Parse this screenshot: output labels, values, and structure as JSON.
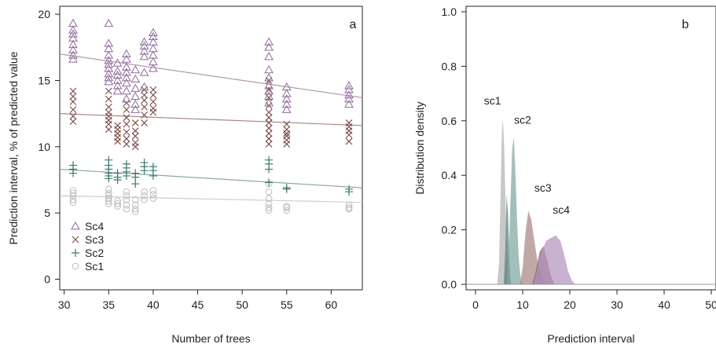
{
  "chart_data": [
    {
      "panel_label": "a",
      "type": "scatter",
      "xlabel": "Number of trees",
      "ylabel": "Prediction interval, % of predicted value",
      "xlim": [
        29.5,
        63.5
      ],
      "ylim": [
        -0.8,
        20.6
      ],
      "xticks": [
        30,
        35,
        40,
        45,
        50,
        55,
        60
      ],
      "yticks": [
        0,
        5,
        10,
        15,
        20
      ],
      "legend_position": "bottom-left",
      "series": [
        {
          "name": "Sc4",
          "marker": "triangle",
          "color": "#8e6a9c",
          "x": [
            31,
            31,
            31,
            31,
            31,
            31,
            31,
            31,
            35,
            35,
            35,
            35,
            35,
            35,
            35,
            35,
            35,
            35,
            36,
            36,
            36,
            36,
            36,
            36,
            37,
            37,
            37,
            37,
            37,
            37,
            37,
            37,
            38,
            38,
            38,
            38,
            38,
            38,
            39,
            39,
            39,
            39,
            39,
            39,
            40,
            40,
            40,
            40,
            40,
            40,
            40,
            53,
            53,
            53,
            53,
            53,
            53,
            53,
            53,
            53,
            55,
            55,
            55,
            55,
            55,
            62,
            62,
            62,
            62,
            62
          ],
          "y": [
            19.3,
            18.8,
            18.2,
            17.7,
            17.3,
            16.9,
            16.6,
            18.5,
            19.3,
            17.8,
            17.4,
            16.9,
            16.5,
            16.2,
            15.9,
            15.5,
            15.2,
            14.9,
            16.3,
            15.7,
            15.4,
            15.0,
            14.6,
            14.2,
            17.0,
            16.6,
            16.0,
            15.6,
            15.2,
            14.8,
            14.2,
            13.6,
            15.8,
            15.1,
            14.4,
            13.8,
            13.2,
            12.8,
            17.9,
            17.6,
            17.2,
            16.8,
            15.6,
            14.5,
            18.6,
            18.3,
            17.9,
            17.4,
            16.9,
            16.4,
            15.9,
            17.9,
            17.5,
            16.8,
            15.8,
            15.2,
            14.6,
            14.2,
            13.8,
            13.3,
            14.5,
            14.0,
            13.6,
            13.2,
            12.8,
            14.6,
            14.3,
            13.9,
            13.6,
            13.2
          ]
        },
        {
          "name": "Sc3",
          "marker": "cross",
          "color": "#7a4a48",
          "x": [
            31,
            31,
            31,
            31,
            31,
            31,
            35,
            35,
            35,
            35,
            35,
            35,
            35,
            35,
            36,
            36,
            36,
            36,
            36,
            37,
            37,
            37,
            37,
            37,
            37,
            37,
            38,
            38,
            38,
            38,
            38,
            39,
            39,
            39,
            39,
            39,
            39,
            40,
            40,
            40,
            40,
            40,
            53,
            53,
            53,
            53,
            53,
            53,
            53,
            53,
            53,
            53,
            53,
            55,
            55,
            55,
            55,
            55,
            55,
            62,
            62,
            62,
            62,
            62
          ],
          "y": [
            14.2,
            13.8,
            13.4,
            12.8,
            12.3,
            11.9,
            14.2,
            13.6,
            13.0,
            12.6,
            12.3,
            12.0,
            11.7,
            11.3,
            11.6,
            11.3,
            11.0,
            10.7,
            10.4,
            13.3,
            12.8,
            12.2,
            11.7,
            11.1,
            10.6,
            10.2,
            11.8,
            11.2,
            10.8,
            10.3,
            10.0,
            14.3,
            13.9,
            13.5,
            13.0,
            12.4,
            11.8,
            14.3,
            13.9,
            13.4,
            12.9,
            12.6,
            15.0,
            14.3,
            13.7,
            13.1,
            12.6,
            12.2,
            11.8,
            11.4,
            11.0,
            10.6,
            10.2,
            11.7,
            11.3,
            11.0,
            10.8,
            10.5,
            10.2,
            11.8,
            11.5,
            11.2,
            10.9,
            10.4
          ]
        },
        {
          "name": "Sc2",
          "marker": "plus",
          "color": "#3e7a72",
          "x": [
            31,
            31,
            31,
            35,
            35,
            35,
            35,
            35,
            35,
            36,
            36,
            36,
            37,
            37,
            37,
            37,
            38,
            38,
            38,
            39,
            39,
            39,
            40,
            40,
            40,
            53,
            53,
            53,
            53,
            55,
            55,
            62,
            62
          ],
          "y": [
            8.6,
            8.3,
            8.0,
            9.0,
            8.6,
            8.3,
            8.0,
            7.8,
            7.6,
            8.0,
            7.7,
            7.5,
            8.7,
            8.4,
            8.1,
            7.8,
            8.0,
            7.7,
            7.2,
            8.8,
            8.5,
            8.2,
            8.5,
            8.2,
            7.8,
            9.0,
            8.7,
            8.3,
            7.3,
            6.9,
            6.8,
            6.8,
            6.6
          ]
        },
        {
          "name": "Sc1",
          "marker": "circle",
          "color": "#bdbdbd",
          "x": [
            31,
            31,
            31,
            31,
            31,
            35,
            35,
            35,
            35,
            35,
            35,
            36,
            36,
            36,
            37,
            37,
            37,
            37,
            37,
            38,
            38,
            38,
            38,
            39,
            39,
            39,
            40,
            40,
            40,
            53,
            53,
            53,
            53,
            53,
            53,
            55,
            55,
            55,
            62,
            62,
            62
          ],
          "y": [
            6.7,
            6.5,
            6.3,
            6.0,
            5.8,
            6.8,
            6.5,
            6.3,
            6.1,
            5.9,
            5.7,
            5.9,
            5.7,
            5.5,
            6.6,
            6.3,
            6.0,
            5.6,
            5.3,
            6.0,
            5.6,
            5.3,
            5.1,
            6.6,
            6.3,
            6.0,
            6.7,
            6.4,
            6.1,
            7.2,
            6.6,
            6.1,
            5.7,
            5.4,
            5.2,
            5.5,
            5.4,
            5.2,
            5.6,
            5.4,
            5.3
          ]
        }
      ],
      "trend_lines": [
        {
          "name": "Sc4",
          "x": [
            29.5,
            63.5
          ],
          "y": [
            17.0,
            13.7
          ],
          "color": "#b49aa8"
        },
        {
          "name": "Sc3",
          "x": [
            29.5,
            63.5
          ],
          "y": [
            12.5,
            11.6
          ],
          "color": "#a48884"
        },
        {
          "name": "Sc2",
          "x": [
            29.5,
            63.5
          ],
          "y": [
            8.3,
            6.9
          ],
          "color": "#8aaaa6"
        },
        {
          "name": "Sc1",
          "x": [
            29.5,
            63.5
          ],
          "y": [
            6.3,
            5.8
          ],
          "color": "#cfcfcf"
        }
      ]
    },
    {
      "panel_label": "b",
      "type": "area",
      "xlabel": "Prediction interval",
      "ylabel": "Distribution density",
      "xlim": [
        -2,
        51
      ],
      "ylim": [
        -0.02,
        1.02
      ],
      "xticks": [
        0,
        10,
        20,
        30,
        40,
        50
      ],
      "yticks": [
        0.0,
        0.2,
        0.4,
        0.6,
        0.8,
        1.0
      ],
      "yticklabels": [
        "0.0",
        "0.2",
        "0.4",
        "0.6",
        "0.8",
        "1.0"
      ],
      "series": [
        {
          "name": "sc1",
          "color": "#b3b3b3",
          "x": [
            4.6,
            5.0,
            5.3,
            5.6,
            5.8,
            6.1,
            6.4,
            6.7,
            7.0,
            7.3,
            7.6
          ],
          "y": [
            0,
            0.08,
            0.32,
            0.56,
            0.61,
            0.5,
            0.28,
            0.12,
            0.04,
            0.01,
            0
          ]
        },
        {
          "name": "",
          "color": "#547f7b",
          "x": [
            6.0,
            6.3,
            6.6,
            6.9,
            7.2,
            7.5
          ],
          "y": [
            0,
            0.12,
            0.33,
            0.26,
            0.08,
            0
          ]
        },
        {
          "name": "sc2",
          "color": "#7fa6a2",
          "x": [
            6.6,
            7.0,
            7.4,
            7.8,
            8.1,
            8.4,
            8.8,
            9.2,
            9.6,
            10.0
          ],
          "y": [
            0,
            0.1,
            0.3,
            0.5,
            0.54,
            0.44,
            0.24,
            0.09,
            0.02,
            0
          ]
        },
        {
          "name": "sc3",
          "color": "#a98685",
          "x": [
            9.4,
            10.0,
            10.6,
            11.2,
            11.8,
            12.4,
            13.0,
            13.6,
            14.2,
            14.8,
            15.4
          ],
          "y": [
            0,
            0.06,
            0.19,
            0.27,
            0.24,
            0.17,
            0.1,
            0.05,
            0.02,
            0.01,
            0
          ]
        },
        {
          "name": "",
          "color": "#8a5e6e",
          "x": [
            12.0,
            12.8,
            13.6,
            14.4,
            15.2,
            16.0,
            16.8
          ],
          "y": [
            0,
            0.05,
            0.12,
            0.14,
            0.09,
            0.03,
            0
          ]
        },
        {
          "name": "sc4",
          "color": "#b394be",
          "x": [
            12.2,
            13.0,
            14.0,
            15.0,
            16.0,
            17.0,
            18.0,
            18.8,
            19.6,
            20.4,
            21.2
          ],
          "y": [
            0,
            0.05,
            0.12,
            0.16,
            0.17,
            0.18,
            0.16,
            0.11,
            0.05,
            0.015,
            0
          ]
        }
      ],
      "annotations": [
        {
          "text": "sc1",
          "x": 3.6,
          "y": 0.66
        },
        {
          "text": "sc2",
          "x": 10.0,
          "y": 0.59
        },
        {
          "text": "sc3",
          "x": 14.3,
          "y": 0.34
        },
        {
          "text": "sc4",
          "x": 18.2,
          "y": 0.26
        }
      ]
    }
  ]
}
